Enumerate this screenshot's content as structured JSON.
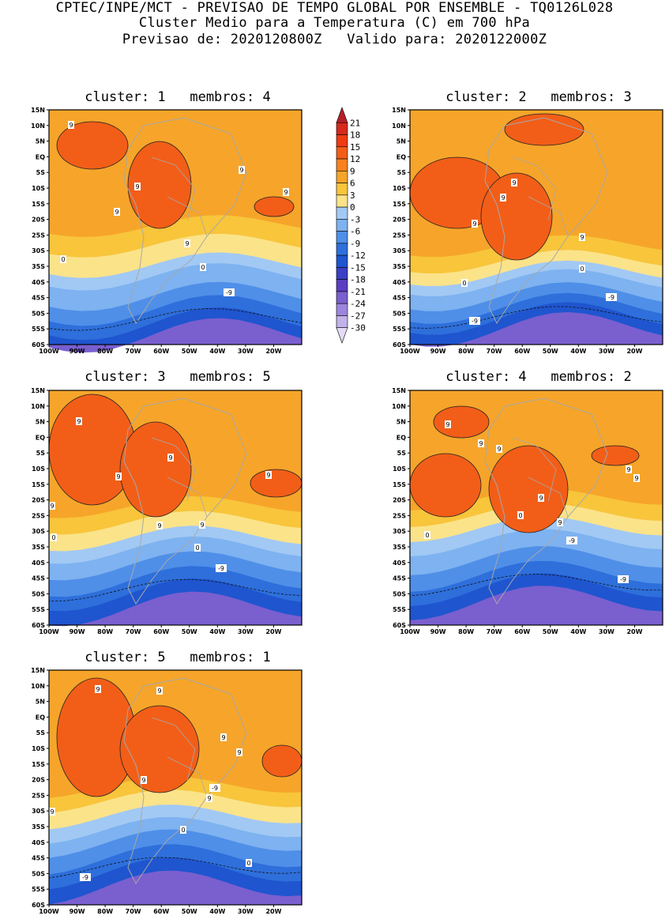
{
  "header": {
    "line1": "CPTEC/INPE/MCT - PREVISAO DE TEMPO GLOBAL POR ENSEMBLE - TQ0126L028",
    "line2": "Cluster Medio para a Temperatura (C) em 700 hPa",
    "line3": "Previsao de: 2020120800Z   Valido para: 2020122000Z"
  },
  "axes": {
    "lat_ticks": [
      "15N",
      "10N",
      "5N",
      "EQ",
      "5S",
      "10S",
      "15S",
      "20S",
      "25S",
      "30S",
      "35S",
      "40S",
      "45S",
      "50S",
      "55S",
      "60S"
    ],
    "lon_ticks": [
      "100W",
      "90W",
      "80W",
      "70W",
      "60W",
      "50W",
      "40W",
      "30W",
      "20W"
    ],
    "lon_range": [
      -100,
      -10
    ],
    "lat_range": [
      -60,
      15
    ]
  },
  "colorbar": {
    "levels": [
      "21",
      "18",
      "15",
      "12",
      "9",
      "6",
      "3",
      "0",
      "-3",
      "-6",
      "-9",
      "-12",
      "-15",
      "-18",
      "-21",
      "-24",
      "-27",
      "-30"
    ],
    "colors": [
      "#b3202a",
      "#d52a1d",
      "#ee3b12",
      "#f25e18",
      "#f7821f",
      "#f6a52a",
      "#f8c53b",
      "#fbe38a",
      "#a2c9f4",
      "#7eb2f0",
      "#4f8fe8",
      "#2e6fdb",
      "#1f55cf",
      "#3b3fc4",
      "#5a3ec0",
      "#7a5fcf",
      "#9d86de",
      "#c2b2ea",
      "#e3dbf4"
    ]
  },
  "panels": [
    {
      "title": "cluster: 1   membros: 4",
      "contour_labels": [
        "9",
        "9",
        "9",
        "9",
        "9",
        "9",
        "0",
        "0",
        "-9"
      ]
    },
    {
      "title": "cluster: 2   membros: 3",
      "contour_labels": [
        "9",
        "9",
        "9",
        "9",
        "0",
        "0",
        "-9",
        "-9"
      ]
    },
    {
      "title": "cluster: 3   membros: 5",
      "contour_labels": [
        "9",
        "9",
        "9",
        "9",
        "9",
        "9",
        "9",
        "0",
        "0",
        "-9"
      ]
    },
    {
      "title": "cluster: 4   membros: 2",
      "contour_labels": [
        "9",
        "9",
        "9",
        "9",
        "9",
        "9",
        "9",
        "0",
        "0",
        "-9",
        "-9"
      ]
    },
    {
      "title": "cluster: 5   membros: 1",
      "contour_labels": [
        "9",
        "9",
        "9",
        "9",
        "9",
        "9",
        "9",
        "0",
        "0",
        "-9",
        "-9"
      ]
    }
  ]
}
